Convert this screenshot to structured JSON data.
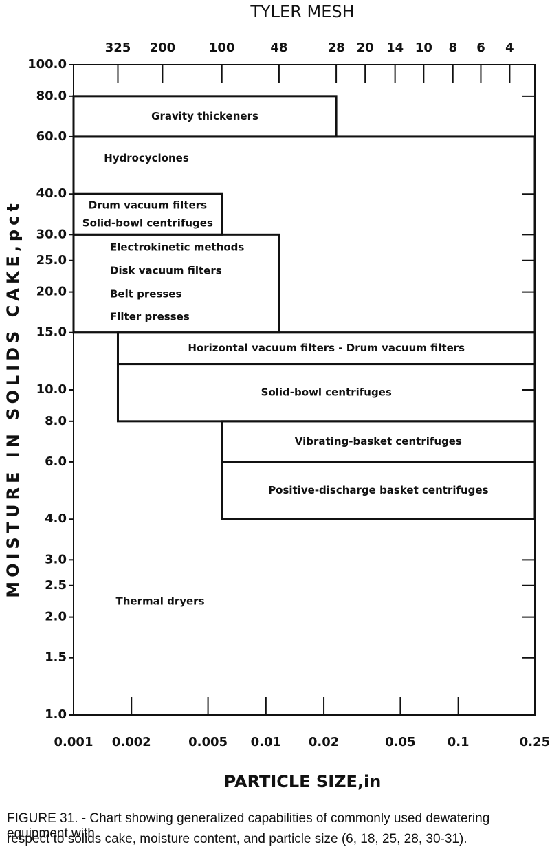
{
  "chart_data": {
    "type": "box-regions",
    "title": "TYLER MESH",
    "xlabel": "PARTICLE SIZE,in",
    "ylabel": "MOISTURE IN SOLIDS CAKE,pct",
    "xscale": "log",
    "yscale": "log",
    "xlim": [
      0.001,
      0.25
    ],
    "ylim": [
      1,
      100
    ],
    "xticks": [
      0.001,
      0.002,
      0.005,
      0.01,
      0.02,
      0.05,
      0.1,
      0.25
    ],
    "x2ticks": [
      {
        "value": 0.0017,
        "label": "325"
      },
      {
        "value": 0.0029,
        "label": "200"
      },
      {
        "value": 0.0059,
        "label": "100"
      },
      {
        "value": 0.0117,
        "label": "48"
      },
      {
        "value": 0.0232,
        "label": "28"
      },
      {
        "value": 0.0328,
        "label": "20"
      },
      {
        "value": 0.0469,
        "label": "14"
      },
      {
        "value": 0.0661,
        "label": "10"
      },
      {
        "value": 0.0937,
        "label": "8"
      },
      {
        "value": 0.131,
        "label": "6"
      },
      {
        "value": 0.185,
        "label": "4"
      }
    ],
    "yticks": [
      {
        "value": 100,
        "label": "100.0"
      },
      {
        "value": 80,
        "label": "80.0"
      },
      {
        "value": 60,
        "label": "60.0"
      },
      {
        "value": 40,
        "label": "40.0"
      },
      {
        "value": 30,
        "label": "30.0"
      },
      {
        "value": 25,
        "label": "25.0"
      },
      {
        "value": 20,
        "label": "20.0"
      },
      {
        "value": 15,
        "label": "15.0"
      },
      {
        "value": 10,
        "label": "10.0"
      },
      {
        "value": 8,
        "label": "8.0"
      },
      {
        "value": 6,
        "label": "6.0"
      },
      {
        "value": 4,
        "label": "4.0"
      },
      {
        "value": 3,
        "label": "3.0"
      },
      {
        "value": 2.5,
        "label": "2.5"
      },
      {
        "value": 2,
        "label": "2.0"
      },
      {
        "value": 1.5,
        "label": "1.5"
      },
      {
        "value": 1,
        "label": "1.0"
      }
    ],
    "color": "#111111",
    "boxes": [
      {
        "labels": [
          "Gravity thickeners"
        ],
        "x": [
          0.001,
          0.0232
        ],
        "y": [
          60,
          80
        ]
      },
      {
        "labels": [
          "Hydrocyclones"
        ],
        "x": [
          0.001,
          0.25
        ],
        "y": [
          15,
          60
        ]
      },
      {
        "labels": [
          "Drum vacuum filters",
          "Solid-bowl centrifuges"
        ],
        "x": [
          0.001,
          0.0059
        ],
        "y": [
          30,
          40
        ]
      },
      {
        "labels": [
          "Electrokinetic methods",
          "Disk vacuum filters",
          "Belt presses",
          "Filter presses"
        ],
        "x": [
          0.001,
          0.0117
        ],
        "y": [
          15,
          30
        ]
      },
      {
        "labels": [
          "Horizontal vacuum filters  -  Drum vacuum filters"
        ],
        "x": [
          0.0017,
          0.25
        ],
        "y": [
          12,
          15
        ]
      },
      {
        "labels": [
          "Solid-bowl centrifuges"
        ],
        "x": [
          0.0017,
          0.25
        ],
        "y": [
          8,
          12
        ]
      },
      {
        "labels": [
          "Vibrating-basket centrifuges"
        ],
        "x": [
          0.0059,
          0.25
        ],
        "y": [
          6,
          8
        ]
      },
      {
        "labels": [
          "Positive-discharge basket centrifuges"
        ],
        "x": [
          0.0059,
          0.25
        ],
        "y": [
          4,
          6
        ]
      }
    ],
    "annotations": [
      "Thermal dryers"
    ],
    "caption": [
      "FIGURE 31. - Chart showing generalized capabilities of commonly used dewatering equipment with",
      "respect to solids cake, moisture content, and particle size (6, 18, 25, 28, 30-31)."
    ]
  }
}
